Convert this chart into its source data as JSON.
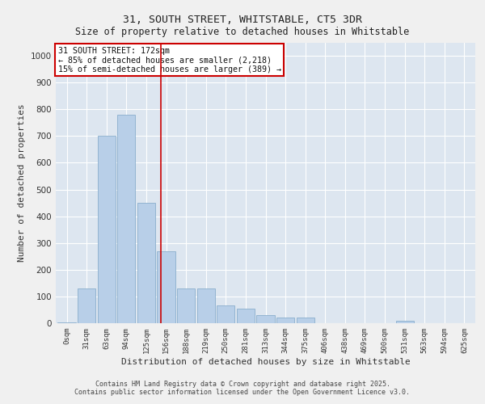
{
  "title_line1": "31, SOUTH STREET, WHITSTABLE, CT5 3DR",
  "title_line2": "Size of property relative to detached houses in Whitstable",
  "xlabel": "Distribution of detached houses by size in Whitstable",
  "ylabel": "Number of detached properties",
  "bg_color": "#dde6f0",
  "bar_color": "#b8cfe8",
  "bar_edge_color": "#8aaecc",
  "vline_color": "#cc0000",
  "vline_x": 4.72,
  "annotation_box_text": "31 SOUTH STREET: 172sqm\n← 85% of detached houses are smaller (2,218)\n15% of semi-detached houses are larger (389) →",
  "annotation_box_color": "#ffffff",
  "annotation_box_edge_color": "#cc0000",
  "categories": [
    "0sqm",
    "31sqm",
    "63sqm",
    "94sqm",
    "125sqm",
    "156sqm",
    "188sqm",
    "219sqm",
    "250sqm",
    "281sqm",
    "313sqm",
    "344sqm",
    "375sqm",
    "406sqm",
    "438sqm",
    "469sqm",
    "500sqm",
    "531sqm",
    "563sqm",
    "594sqm",
    "625sqm"
  ],
  "values": [
    2,
    130,
    700,
    780,
    450,
    270,
    130,
    130,
    65,
    55,
    30,
    20,
    20,
    0,
    0,
    0,
    0,
    10,
    0,
    0,
    0
  ],
  "ylim": [
    0,
    1050
  ],
  "yticks": [
    0,
    100,
    200,
    300,
    400,
    500,
    600,
    700,
    800,
    900,
    1000
  ],
  "grid_color": "#ffffff",
  "outer_bg": "#f0f0f0",
  "footer_text": "Contains HM Land Registry data © Crown copyright and database right 2025.\nContains public sector information licensed under the Open Government Licence v3.0.",
  "figsize": [
    6.0,
    5.0
  ],
  "dpi": 100
}
